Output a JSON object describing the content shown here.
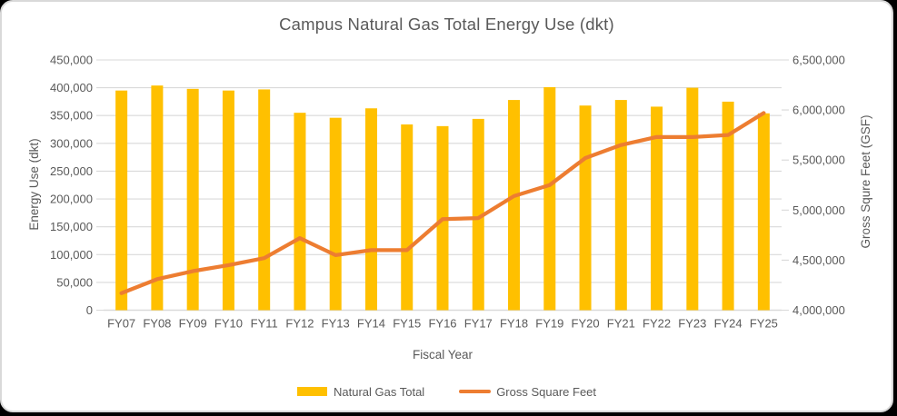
{
  "page": {
    "background_color": "#000000",
    "card_background_color": "#ffffff",
    "card_border_color": "#d9d9d9"
  },
  "chart_data": {
    "type": "bar+line combo",
    "title": "Campus Natural Gas Total Energy Use (dkt)",
    "xlabel": "Fiscal Year",
    "ylabel_left": "Energy Use (dkt)",
    "ylabel_right": "Gross Squre Feet (GSF)",
    "grid": true,
    "legend_position": "bottom",
    "categories": [
      "FY07",
      "FY08",
      "FY09",
      "FY10",
      "FY11",
      "FY12",
      "FY13",
      "FY14",
      "FY15",
      "FY16",
      "FY17",
      "FY18",
      "FY19",
      "FY20",
      "FY21",
      "FY22",
      "FY23",
      "FY24",
      "FY25"
    ],
    "series": [
      {
        "name": "Natural Gas Total",
        "type": "bar",
        "axis": "left",
        "color": "#FFC000",
        "values": [
          395000,
          404000,
          398000,
          395000,
          397000,
          355000,
          346000,
          363000,
          334000,
          331000,
          344000,
          378000,
          401000,
          368000,
          378000,
          366000,
          400000,
          375000,
          354000
        ]
      },
      {
        "name": "Gross Square Feet",
        "type": "line",
        "axis": "right",
        "color": "#ED7D31",
        "values": [
          4170000,
          4310000,
          4390000,
          4450000,
          4520000,
          4720000,
          4550000,
          4600000,
          4600000,
          4910000,
          4920000,
          5140000,
          5250000,
          5520000,
          5650000,
          5730000,
          5730000,
          5750000,
          5970000
        ]
      }
    ],
    "left_axis": {
      "min": 0,
      "max": 450000,
      "step": 50000,
      "tick_labels": [
        "0",
        "50,000",
        "100,000",
        "150,000",
        "200,000",
        "250,000",
        "300,000",
        "350,000",
        "400,000",
        "450,000"
      ]
    },
    "right_axis": {
      "min": 4000000,
      "max": 6500000,
      "step": 500000,
      "tick_labels": [
        "4,000,000",
        "4,500,000",
        "5,000,000",
        "5,500,000",
        "6,000,000",
        "6,500,000"
      ]
    },
    "style": {
      "gridline_color": "#D9D9D9",
      "axis_line_color": "#D3D3D3",
      "text_color": "#595959"
    }
  },
  "legend": {
    "items": [
      {
        "label": "Natural Gas Total",
        "color": "#FFC000",
        "shape": "bar"
      },
      {
        "label": "Gross Square Feet",
        "color": "#ED7D31",
        "shape": "line"
      }
    ]
  }
}
